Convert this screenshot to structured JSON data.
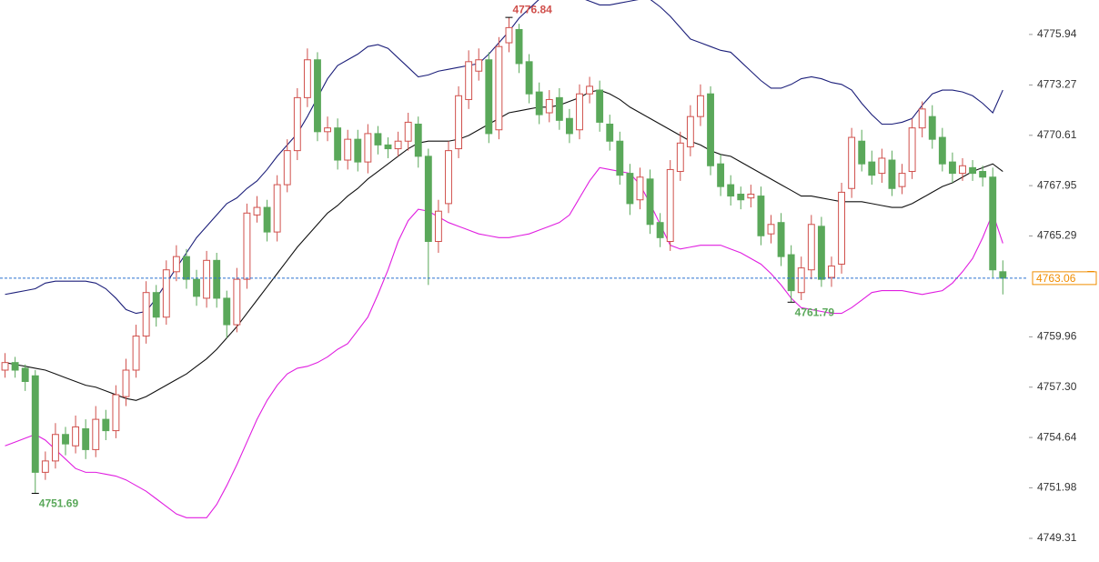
{
  "chart_data": {
    "type": "candlestick",
    "open": [
      4758.2,
      4758.6,
      4758.3,
      4757.9,
      4752.8,
      4753.4,
      4754.8,
      4754.2,
      4755.1,
      4754.0,
      4755.6,
      4755.0,
      4756.8,
      4758.2,
      4760.0,
      4762.3,
      4761.0,
      4763.4,
      4764.2,
      4763.0,
      4762.0,
      4764.0,
      4762.0,
      4760.6,
      4763.0,
      4766.4,
      4766.8,
      4765.5,
      4768.0,
      4769.8,
      4772.6,
      4774.6,
      4770.8,
      4771.0,
      4769.3,
      4770.4,
      4769.2,
      4770.7,
      4770.1,
      4769.9,
      4770.3,
      4771.2,
      4769.5,
      4765.0,
      4767.0,
      4769.9,
      4772.5,
      4774.0,
      4774.6,
      4770.9,
      4775.5,
      4776.2,
      4774.5,
      4772.9,
      4771.8,
      4772.6,
      4771.5,
      4770.9,
      4772.8,
      4773.0,
      4771.2,
      4770.3,
      4768.6,
      4767.2,
      4768.3,
      4766.0,
      4765.0,
      4768.7,
      4770.0,
      4771.6,
      4772.8,
      4769.1,
      4768.0,
      4767.5,
      4767.3,
      4767.4,
      4765.4,
      4766.0,
      4764.3,
      4762.3,
      4763.5,
      4765.8,
      4763.1,
      4763.8,
      4767.8,
      4770.3,
      4769.2,
      4768.6,
      4769.3,
      4767.9,
      4768.7,
      4771.0,
      4771.6,
      4770.5,
      4769.2,
      4768.6,
      4768.9,
      4768.7,
      4768.4,
      4763.4
    ],
    "high": [
      4759.1,
      4758.9,
      4758.5,
      4758.2,
      4753.9,
      4755.4,
      4755.2,
      4755.8,
      4755.6,
      4756.3,
      4756.1,
      4757.4,
      4758.8,
      4760.6,
      4762.9,
      4762.7,
      4764.0,
      4764.8,
      4764.6,
      4763.5,
      4764.5,
      4764.4,
      4762.4,
      4763.6,
      4767.0,
      4767.4,
      4767.2,
      4768.5,
      4770.4,
      4773.1,
      4775.2,
      4775.0,
      4771.6,
      4771.5,
      4770.9,
      4770.9,
      4771.2,
      4771.1,
      4770.5,
      4770.8,
      4771.8,
      4771.6,
      4769.9,
      4767.2,
      4770.3,
      4773.2,
      4775.1,
      4775.2,
      4775.0,
      4775.8,
      4776.84,
      4776.5,
      4774.9,
      4773.4,
      4773.0,
      4773.1,
      4772.0,
      4773.3,
      4773.7,
      4773.5,
      4771.7,
      4770.8,
      4769.1,
      4768.9,
      4768.8,
      4766.5,
      4769.3,
      4770.8,
      4772.2,
      4773.3,
      4773.2,
      4769.6,
      4768.5,
      4767.9,
      4768.0,
      4767.9,
      4766.4,
      4766.5,
      4764.8,
      4764.2,
      4766.4,
      4766.3,
      4764.2,
      4768.1,
      4771.0,
      4770.9,
      4769.8,
      4769.9,
      4769.8,
      4769.1,
      4771.5,
      4772.4,
      4772.2,
      4771.0,
      4769.7,
      4769.4,
      4769.3,
      4769.0,
      4768.9,
      4764.0
    ],
    "low": [
      4757.8,
      4757.8,
      4757.1,
      4751.69,
      4752.4,
      4753.0,
      4753.7,
      4753.8,
      4753.5,
      4753.6,
      4754.5,
      4754.6,
      4756.3,
      4757.8,
      4759.6,
      4760.5,
      4760.6,
      4762.9,
      4762.5,
      4761.6,
      4761.5,
      4761.5,
      4759.9,
      4760.2,
      4762.5,
      4766.0,
      4765.0,
      4765.0,
      4767.6,
      4769.3,
      4772.1,
      4770.3,
      4770.3,
      4768.8,
      4768.8,
      4768.7,
      4768.6,
      4769.6,
      4769.4,
      4769.5,
      4769.8,
      4768.9,
      4762.7,
      4764.4,
      4766.5,
      4769.4,
      4772.0,
      4773.5,
      4770.2,
      4770.4,
      4775.0,
      4773.9,
      4772.3,
      4771.2,
      4771.3,
      4770.9,
      4770.2,
      4770.4,
      4772.3,
      4770.8,
      4769.8,
      4768.0,
      4766.4,
      4766.7,
      4765.4,
      4764.7,
      4764.5,
      4768.2,
      4769.5,
      4771.1,
      4768.5,
      4767.4,
      4766.9,
      4766.7,
      4766.8,
      4764.8,
      4764.9,
      4763.7,
      4761.79,
      4761.9,
      4763.0,
      4762.6,
      4762.6,
      4763.3,
      4767.3,
      4768.7,
      4768.0,
      4768.1,
      4767.4,
      4767.5,
      4768.3,
      4770.5,
      4769.9,
      4768.7,
      4768.1,
      4768.2,
      4768.2,
      4767.9,
      4763.1,
      4762.2
    ],
    "close": [
      4758.6,
      4758.2,
      4757.6,
      4752.8,
      4753.4,
      4754.8,
      4754.3,
      4755.2,
      4754.0,
      4755.6,
      4755.0,
      4756.9,
      4758.2,
      4760.0,
      4762.3,
      4761.0,
      4763.5,
      4764.2,
      4763.0,
      4762.1,
      4764.0,
      4762.0,
      4760.6,
      4763.0,
      4766.5,
      4766.8,
      4765.5,
      4768.0,
      4769.8,
      4772.6,
      4774.6,
      4770.8,
      4771.0,
      4769.3,
      4770.4,
      4769.2,
      4770.7,
      4770.1,
      4769.9,
      4770.3,
      4771.3,
      4769.5,
      4765.0,
      4766.6,
      4769.8,
      4772.7,
      4774.5,
      4774.6,
      4770.7,
      4775.3,
      4776.3,
      4774.4,
      4772.8,
      4771.7,
      4772.5,
      4771.4,
      4770.7,
      4772.8,
      4773.2,
      4771.3,
      4770.3,
      4768.5,
      4767.0,
      4768.4,
      4765.9,
      4765.2,
      4768.8,
      4770.2,
      4771.6,
      4772.7,
      4769.0,
      4767.9,
      4767.4,
      4767.2,
      4767.5,
      4765.3,
      4765.9,
      4764.2,
      4762.4,
      4763.6,
      4765.9,
      4763.0,
      4763.7,
      4767.6,
      4770.5,
      4769.1,
      4768.5,
      4769.4,
      4767.8,
      4768.6,
      4771.0,
      4772.0,
      4770.4,
      4769.1,
      4768.6,
      4769.0,
      4768.6,
      4768.4,
      4763.5,
      4763.06
    ],
    "up_color": "#d0504c",
    "down_color": "#5aa85a",
    "series": [
      {
        "color": "#1c1f7a",
        "values": [
          4762.2,
          4762.3,
          4762.4,
          4762.5,
          4762.8,
          4762.9,
          4762.9,
          4762.9,
          4762.9,
          4762.8,
          4762.5,
          4762.0,
          4761.4,
          4761.2,
          4761.3,
          4762.0,
          4762.8,
          4763.6,
          4764.4,
          4765.2,
          4765.8,
          4766.4,
          4767.0,
          4767.3,
          4767.8,
          4768.2,
          4768.8,
          4769.5,
          4770.1,
          4770.7,
          4771.6,
          4772.6,
          4773.6,
          4774.3,
          4774.6,
          4774.9,
          4775.3,
          4775.4,
          4775.2,
          4774.7,
          4774.2,
          4773.7,
          4773.8,
          4774.0,
          4774.1,
          4774.2,
          4774.3,
          4774.4,
          4774.9,
          4775.5,
          4776.1,
          4776.8,
          4777.3,
          4777.8,
          4778.2,
          4778.1,
          4778.0,
          4777.9,
          4777.7,
          4777.5,
          4777.5,
          4777.6,
          4777.7,
          4777.8,
          4777.8,
          4777.4,
          4776.9,
          4776.3,
          4775.7,
          4775.5,
          4775.3,
          4775.1,
          4775.0,
          4774.5,
          4774.0,
          4773.5,
          4773.1,
          4773.1,
          4773.3,
          4773.6,
          4773.7,
          4773.6,
          4773.4,
          4773.3,
          4773.0,
          4772.3,
          4771.7,
          4771.2,
          4771.2,
          4771.3,
          4771.5,
          4772.2,
          4772.8,
          4773.0,
          4773.0,
          4772.9,
          4772.7,
          4772.3,
          4771.8,
          4773.0
        ]
      },
      {
        "color": "#111111",
        "values": [
          4758.6,
          4758.5,
          4758.4,
          4758.3,
          4758.2,
          4758.0,
          4757.8,
          4757.6,
          4757.4,
          4757.3,
          4757.1,
          4756.9,
          4756.7,
          4756.6,
          4756.8,
          4757.1,
          4757.4,
          4757.7,
          4758.0,
          4758.4,
          4758.8,
          4759.3,
          4759.9,
          4760.5,
          4761.2,
          4761.9,
          4762.6,
          4763.3,
          4764.0,
          4764.7,
          4765.3,
          4765.9,
          4766.5,
          4766.9,
          4767.4,
          4767.8,
          4768.3,
          4768.7,
          4769.1,
          4769.5,
          4769.9,
          4770.2,
          4770.3,
          4770.3,
          4770.3,
          4770.4,
          4770.6,
          4770.9,
          4771.2,
          4771.5,
          4771.8,
          4771.9,
          4772.0,
          4772.1,
          4772.1,
          4772.2,
          4772.4,
          4772.6,
          4772.9,
          4773.0,
          4772.8,
          4772.5,
          4772.1,
          4771.8,
          4771.5,
          4771.2,
          4770.9,
          4770.6,
          4770.3,
          4770.1,
          4769.8,
          4769.6,
          4769.5,
          4769.2,
          4768.9,
          4768.6,
          4768.3,
          4768.0,
          4767.7,
          4767.4,
          4767.4,
          4767.3,
          4767.2,
          4767.1,
          4767.1,
          4767.1,
          4767.0,
          4766.9,
          4766.8,
          4766.8,
          4767.0,
          4767.3,
          4767.6,
          4767.9,
          4768.1,
          4768.4,
          4768.7,
          4768.9,
          4769.1,
          4768.7
        ]
      },
      {
        "color": "#e01ee0",
        "values": [
          4754.2,
          4754.4,
          4754.6,
          4754.8,
          4754.5,
          4754.0,
          4753.5,
          4753.0,
          4752.8,
          4752.8,
          4752.7,
          4752.6,
          4752.4,
          4752.1,
          4751.8,
          4751.4,
          4751.0,
          4750.6,
          4750.4,
          4750.4,
          4750.4,
          4751.1,
          4752.1,
          4753.2,
          4754.4,
          4755.6,
          4756.6,
          4757.4,
          4758.0,
          4758.3,
          4758.4,
          4758.6,
          4758.9,
          4759.3,
          4759.6,
          4760.3,
          4761.0,
          4762.2,
          4763.5,
          4765.0,
          4766.1,
          4766.7,
          4766.6,
          4766.3,
          4766.0,
          4765.8,
          4765.6,
          4765.4,
          4765.3,
          4765.2,
          4765.2,
          4765.3,
          4765.4,
          4765.6,
          4765.8,
          4766.0,
          4766.4,
          4767.3,
          4768.2,
          4768.9,
          4768.8,
          4768.7,
          4768.6,
          4768.0,
          4767.0,
          4765.9,
          4764.8,
          4764.6,
          4764.7,
          4764.8,
          4764.8,
          4764.8,
          4764.6,
          4764.4,
          4764.1,
          4763.8,
          4763.3,
          4762.7,
          4762.0,
          4761.5,
          4761.4,
          4761.3,
          4761.2,
          4761.2,
          4761.5,
          4761.9,
          4762.3,
          4762.4,
          4762.4,
          4762.4,
          4762.3,
          4762.2,
          4762.3,
          4762.4,
          4762.8,
          4763.4,
          4764.1,
          4765.2,
          4766.5,
          4764.9
        ]
      }
    ],
    "annotations": [
      {
        "text": "4776.84",
        "at": "high",
        "color": "#d0504c"
      },
      {
        "text": "4751.69",
        "at": "low",
        "color": "#5aa85a"
      },
      {
        "text": "4761.79",
        "at": "low",
        "color": "#5aa85a"
      }
    ],
    "last_price": 4763.06,
    "last_price_color": "#f08c00",
    "price_line_color": "#2a72d0",
    "ylim": [
      4748.06,
      4777.76
    ],
    "yticks": [
      4775.94,
      4773.27,
      4770.61,
      4767.95,
      4765.29,
      4759.96,
      {
        "value": 4757.3,
        "label": "4757.30"
      },
      4754.64,
      4751.98,
      4749.31
    ]
  }
}
